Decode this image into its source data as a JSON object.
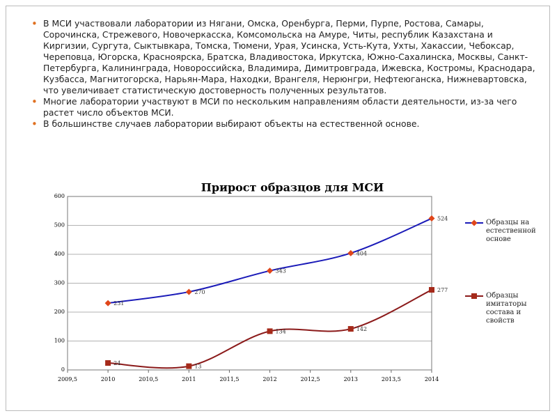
{
  "bullets": [
    "В МСИ участвовали лаборатории из Нягани, Омска, Оренбурга, Перми, Пурпе, Ростова, Самары, Сорочинска, Стрежевого, Новочеркасска, Комсомольска на Амуре, Читы, республик Казахстана и Киргизии, Сургута, Сыктывкара, Томска, Тюмени, Урая, Усинска, Усть-Кута, Ухты, Хакассии, Чебоксар, Череповца, Югорска, Красноярска, Братска, Владивостока, Иркутска, Южно-Сахалинска, Москвы, Санкт-Петербурга, Калининграда, Новороссийска, Владимира, Димитровграда, Ижевска, Костромы, Краснодара, Кузбасса, Магнитогорска, Нарьян-Мара, Находки, Врангеля, Нерюнгри, Нефтеюганска, Нижневартовска, что увеличивает статистическую достоверность полученных результатов.",
    "Многие лаборатории участвуют в МСИ по нескольким направлениям области деятельности, из-за чего растет число объектов МСИ.",
    "В большинстве случаев лаборатории выбирают объекты на естественной основе."
  ],
  "chart_data": {
    "type": "line",
    "title": "Прирост образцов для МСИ",
    "x": [
      2010,
      2011,
      2012,
      2013,
      2014
    ],
    "series": [
      {
        "name": "Образцы на естественной основе",
        "color": "#1a1ab8",
        "marker_color": "#e0461a",
        "marker": "diamond",
        "values": [
          231,
          270,
          343,
          404,
          524
        ]
      },
      {
        "name": "Образцы имитаторы состава и свойств",
        "color": "#8b1a1a",
        "marker_color": "#a52a1a",
        "marker": "square",
        "values": [
          24,
          13,
          134,
          142,
          277
        ]
      }
    ],
    "xlim": [
      2009.5,
      2014
    ],
    "xticks": [
      {
        "value": 2009.5,
        "label": "2009,5"
      },
      2010,
      {
        "value": 2010.5,
        "label": "2010,5"
      },
      2011,
      {
        "value": 2011.5,
        "label": "2011,5"
      },
      2012,
      {
        "value": 2012.5,
        "label": "2012,5"
      },
      2013,
      {
        "value": 2013.5,
        "label": "2013,5"
      },
      2014
    ],
    "ylim": [
      0,
      600
    ],
    "yticks": [
      0,
      100,
      200,
      300,
      400,
      500,
      600
    ],
    "grid": true,
    "legend": "right"
  }
}
